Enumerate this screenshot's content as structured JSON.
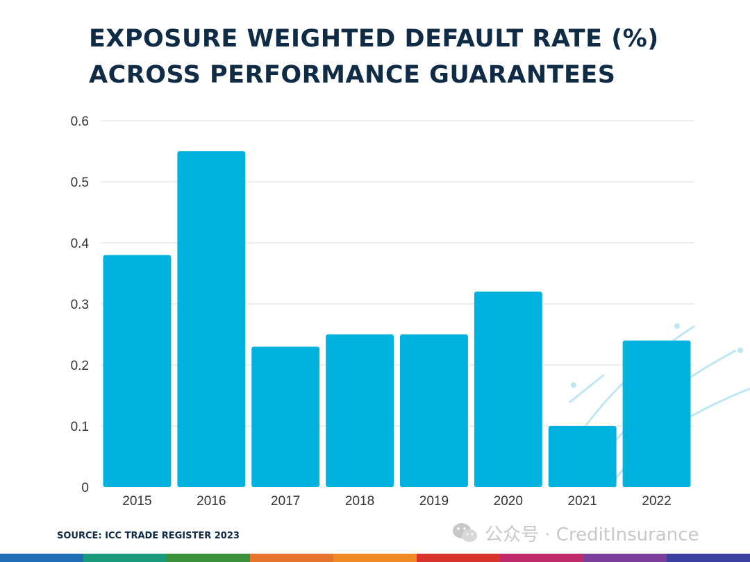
{
  "title": {
    "line1": "EXPOSURE WEIGHTED DEFAULT RATE (%)",
    "line2": "ACROSS PERFORMANCE GUARANTEES"
  },
  "source": "SOURCE: ICC TRADE REGISTER 2023",
  "watermark": {
    "text": "公众号 · CreditInsurance",
    "icon": "wechat-icon"
  },
  "colors": {
    "bar": "#00b2dd",
    "title": "#0f2b45",
    "grid": "#dcdcdc",
    "axis_text": "#333333",
    "decor_lines": "#bfe6f4",
    "bottom_stripe": [
      "#1f6fb4",
      "#1a9a7c",
      "#3b8f3a",
      "#e8732a",
      "#f08a24",
      "#d9342b",
      "#c02a6b",
      "#7a3f9a",
      "#3c3f9e"
    ]
  },
  "chart_data": {
    "type": "bar",
    "title": "EXPOSURE WEIGHTED DEFAULT RATE (%) ACROSS PERFORMANCE GUARANTEES",
    "categories": [
      "2015",
      "2016",
      "2017",
      "2018",
      "2019",
      "2020",
      "2021",
      "2022"
    ],
    "values": [
      0.38,
      0.55,
      0.23,
      0.25,
      0.25,
      0.32,
      0.1,
      0.24
    ],
    "xlabel": "",
    "ylabel": "",
    "ylim": [
      0,
      0.6
    ],
    "yticks": [
      0,
      0.1,
      0.2,
      0.3,
      0.4,
      0.5,
      0.6
    ],
    "ytick_labels": [
      "0",
      "0.1",
      "0.2",
      "0.3",
      "0.4",
      "0.5",
      "0.6"
    ],
    "grid": true,
    "legend": "none"
  }
}
